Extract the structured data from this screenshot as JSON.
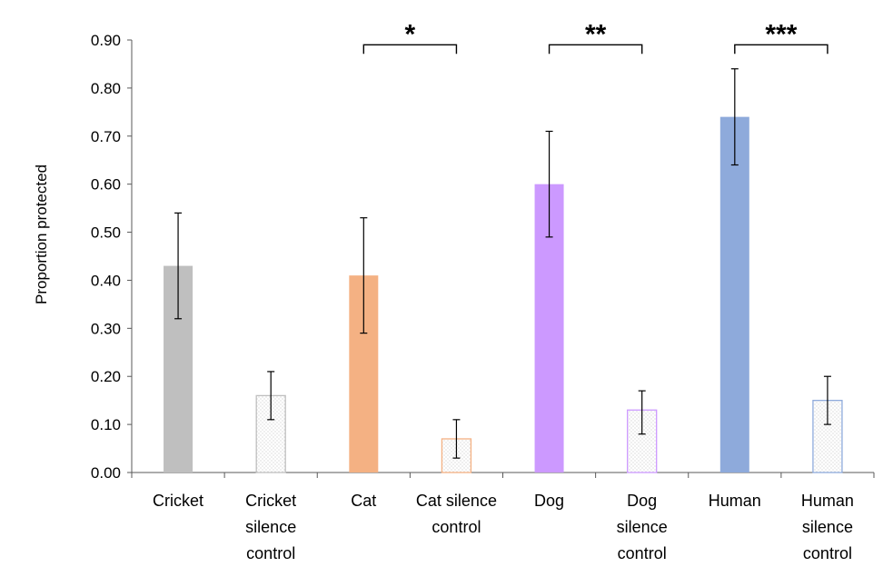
{
  "chart_data": {
    "type": "bar",
    "title": "",
    "xlabel": "",
    "ylabel": "Proportion protected",
    "ylim": [
      0,
      0.9
    ],
    "yticks": [
      "0.00",
      "0.10",
      "0.20",
      "0.30",
      "0.40",
      "0.50",
      "0.60",
      "0.70",
      "0.80",
      "0.90"
    ],
    "grid": false,
    "categories": [
      [
        "Cricket"
      ],
      [
        "Cricket",
        "silence",
        "control"
      ],
      [
        "Cat"
      ],
      [
        "Cat silence",
        "control"
      ],
      [
        "Dog"
      ],
      [
        "Dog",
        "silence",
        "control"
      ],
      [
        "Human"
      ],
      [
        "Human",
        "silence",
        "control"
      ]
    ],
    "values": [
      0.43,
      0.16,
      0.41,
      0.07,
      0.6,
      0.13,
      0.74,
      0.15
    ],
    "error_low": [
      0.32,
      0.11,
      0.29,
      0.03,
      0.49,
      0.08,
      0.64,
      0.1
    ],
    "error_high": [
      0.54,
      0.21,
      0.53,
      0.11,
      0.71,
      0.17,
      0.84,
      0.2
    ],
    "bar_styles": [
      {
        "fill": "#bfbfbf",
        "stroke": "#bfbfbf",
        "hatched": false
      },
      {
        "fill": "#ffffff",
        "stroke": "#bfbfbf",
        "hatched": true
      },
      {
        "fill": "#f4b183",
        "stroke": "#f4b183",
        "hatched": false
      },
      {
        "fill": "#ffffff",
        "stroke": "#f4b183",
        "hatched": true
      },
      {
        "fill": "#cc99ff",
        "stroke": "#cc99ff",
        "hatched": false
      },
      {
        "fill": "#ffffff",
        "stroke": "#cc99ff",
        "hatched": true
      },
      {
        "fill": "#8eaadb",
        "stroke": "#8eaadb",
        "hatched": false
      },
      {
        "fill": "#ffffff",
        "stroke": "#8eaadb",
        "hatched": true
      }
    ],
    "significance": [
      {
        "from": 2,
        "to": 3,
        "label": "*",
        "level": 0.89
      },
      {
        "from": 4,
        "to": 5,
        "label": "**",
        "level": 0.89
      },
      {
        "from": 6,
        "to": 7,
        "label": "***",
        "level": 0.89
      }
    ]
  }
}
